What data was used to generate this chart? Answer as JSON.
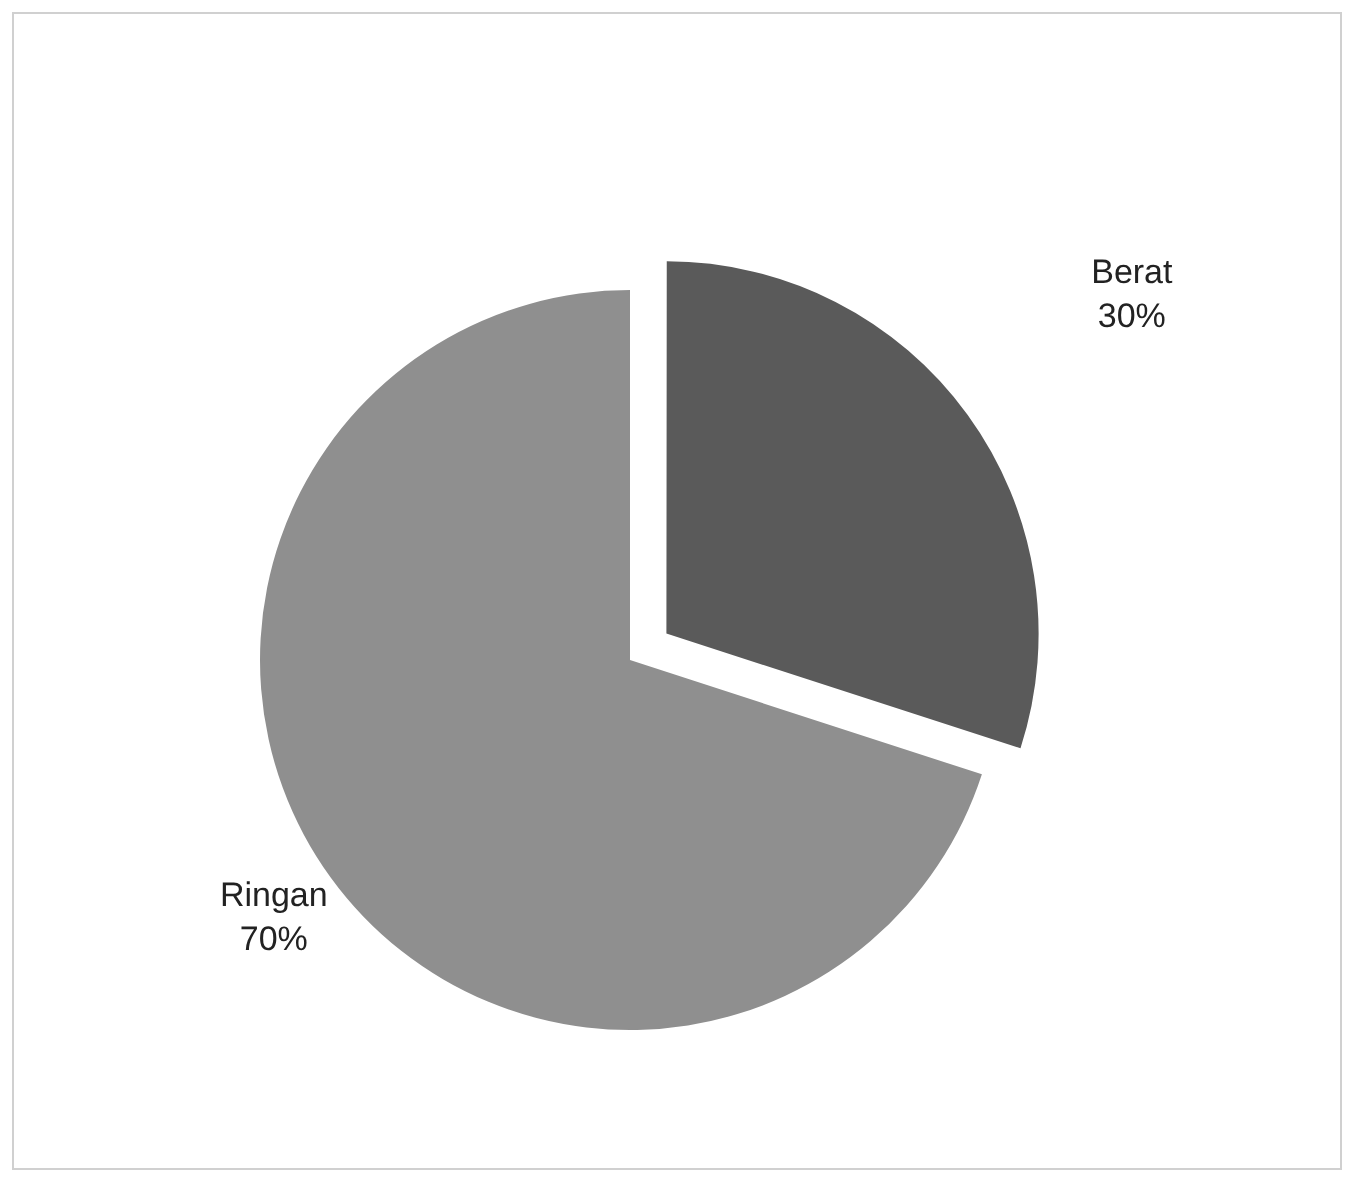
{
  "chart_data": {
    "type": "pie",
    "categories": [
      "Berat",
      "Ringan"
    ],
    "values": [
      30,
      70
    ],
    "colors": [
      "#5a5a5a",
      "#8f8f8f"
    ],
    "value_labels": [
      "30%",
      "70%"
    ],
    "legend": false
  }
}
